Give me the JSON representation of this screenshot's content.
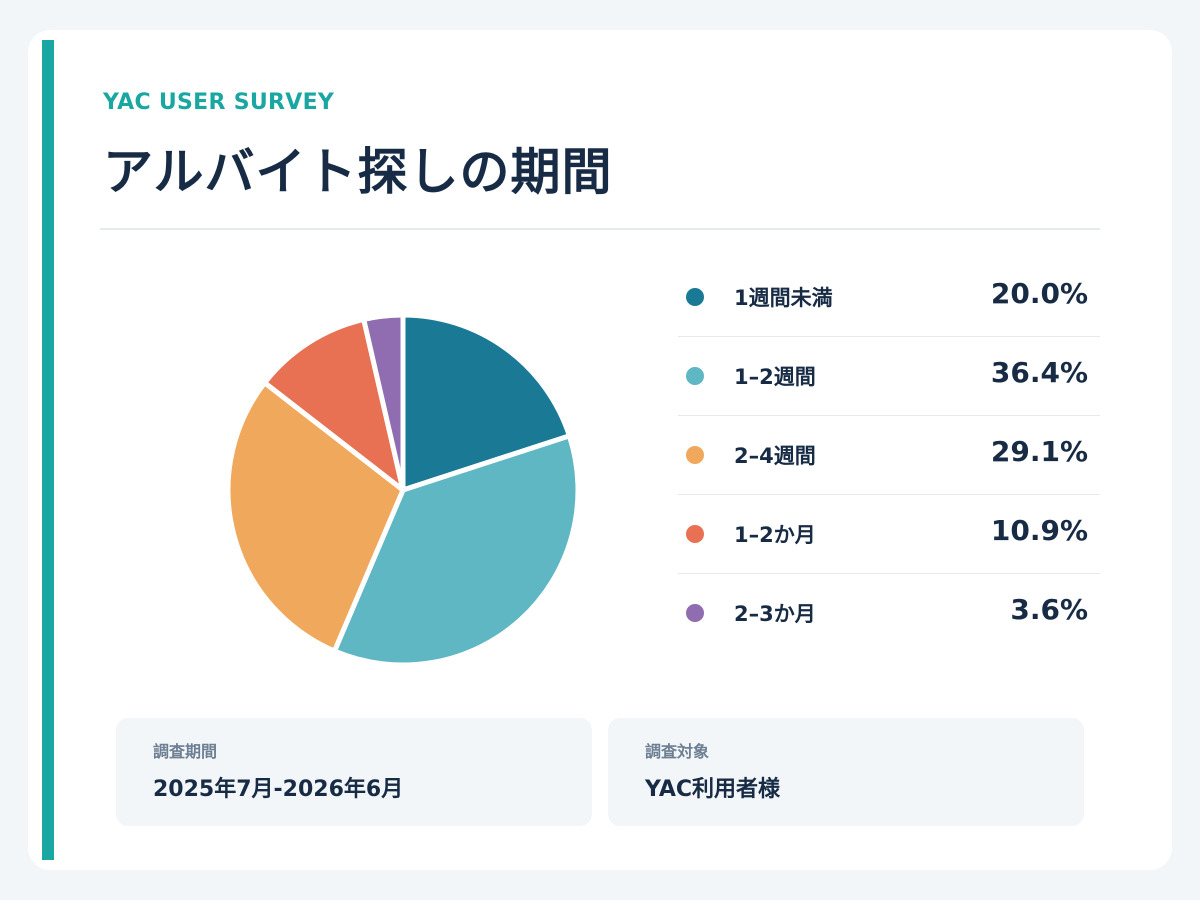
{
  "header": {
    "kicker": "YAC USER SURVEY",
    "title": "アルバイト探しの期間"
  },
  "colors": {
    "accent": "#1aa6a1",
    "text": "#172b45",
    "muted": "#6d7f92"
  },
  "chart_data": {
    "type": "pie",
    "categories": [
      "1週間未満",
      "1–2週間",
      "2–4週間",
      "1–2か月",
      "2–3か月"
    ],
    "values": [
      20.0,
      36.4,
      29.1,
      10.9,
      3.6
    ],
    "display_values": [
      "20.0%",
      "36.4%",
      "29.1%",
      "10.9%",
      "3.6%"
    ],
    "colors": [
      "#1a7a96",
      "#5fb7c4",
      "#f0a85c",
      "#e87154",
      "#8f6db0"
    ],
    "title": "アルバイト探しの期間",
    "legend_position": "right"
  },
  "info": [
    {
      "label": "調査期間",
      "value": "2025年7月-2026年6月"
    },
    {
      "label": "調査対象",
      "value": "YAC利用者様"
    }
  ]
}
